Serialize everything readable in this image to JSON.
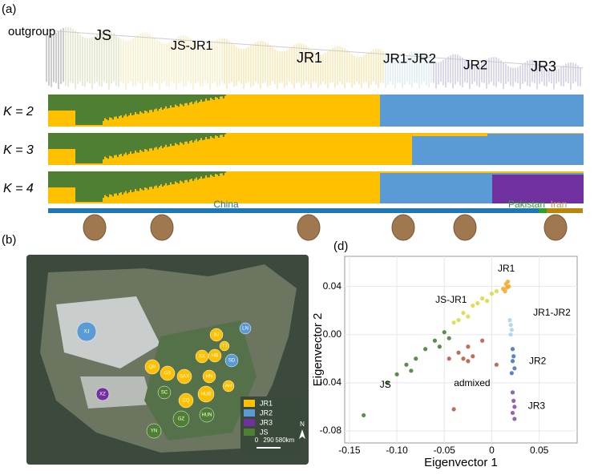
{
  "panel_labels": [
    "(a)",
    "(b)",
    "(d)"
  ],
  "structure": {
    "clades": [
      "outgroup",
      "JS",
      "JS-JR1",
      "JR1",
      "JR1-JR2",
      "JR2",
      "JR3"
    ],
    "k_labels": [
      "K = 2",
      "K = 3",
      "K = 4"
    ],
    "countries": [
      "China",
      "Pakistan",
      "Iran"
    ]
  },
  "map": {
    "sites": [
      "XJ",
      "BJ",
      "TJ",
      "LN",
      "SX",
      "HB",
      "SD",
      "QH",
      "GS",
      "SAX",
      "HN",
      "AH",
      "XZ",
      "SC",
      "CQ",
      "HUB",
      "GZ",
      "HUN",
      "YN"
    ],
    "legend": [
      "JR1",
      "JR2",
      "JR3",
      "JS"
    ],
    "scale": [
      "0",
      "290",
      "580",
      "km"
    ],
    "north": "N"
  },
  "chart_data": {
    "type": "scatter",
    "x_label": "Eigenvector 1",
    "y_label": "Eigenvector 2",
    "xlim": [
      -0.155,
      0.09
    ],
    "ylim": [
      -0.09,
      0.065
    ],
    "grid": true,
    "xticks": [
      -0.15,
      {
        "value": -0.1,
        "label": "-0.10"
      },
      -0.05,
      0,
      0.05
    ],
    "yticks": [
      0.04,
      {
        "value": 0,
        "label": "0.00"
      },
      -0.04,
      -0.08
    ],
    "series": [
      {
        "name": "JS",
        "color": "#3d7a2e",
        "x": [
          -0.135,
          -0.11,
          -0.1,
          -0.09,
          -0.085,
          -0.08,
          -0.07,
          -0.06,
          -0.055,
          -0.05,
          -0.045
        ],
        "values": [
          -0.067,
          -0.04,
          -0.033,
          -0.025,
          -0.03,
          -0.02,
          -0.012,
          -0.005,
          -0.01,
          0.002,
          -0.003
        ]
      },
      {
        "name": "JS-JR1",
        "color": "#d8d83a",
        "x": [
          -0.04,
          -0.035,
          -0.03,
          -0.025,
          -0.02,
          -0.015,
          -0.01,
          -0.005,
          0,
          0.005
        ],
        "values": [
          0.01,
          0.012,
          0.018,
          0.015,
          0.024,
          0.026,
          0.03,
          0.028,
          0.034,
          0.036
        ]
      },
      {
        "name": "JR1",
        "color": "#f5a623",
        "x": [
          0.012,
          0.014,
          0.015,
          0.016,
          0.017,
          0.018
        ],
        "values": [
          0.038,
          0.036,
          0.042,
          0.039,
          0.044,
          0.04
        ]
      },
      {
        "name": "JR1-JR2",
        "color": "#a8d0e8",
        "x": [
          0.019,
          0.02,
          0.021,
          0.02
        ],
        "values": [
          0.012,
          0.008,
          0.004,
          0
        ]
      },
      {
        "name": "JR2",
        "color": "#3d6fb8",
        "x": [
          0.022,
          0.023,
          0.022,
          0.024,
          0.021
        ],
        "values": [
          -0.012,
          -0.018,
          -0.022,
          -0.028,
          -0.032
        ]
      },
      {
        "name": "JR3",
        "color": "#7b4ba8",
        "x": [
          0.022,
          0.023,
          0.024,
          0.022,
          0.024
        ],
        "values": [
          -0.048,
          -0.055,
          -0.06,
          -0.065,
          -0.07
        ]
      },
      {
        "name": "admixed",
        "color": "#b5553a",
        "x": [
          -0.045,
          -0.035,
          -0.03,
          -0.025,
          -0.02,
          -0.025,
          -0.01,
          0.005,
          -0.04
        ],
        "values": [
          -0.02,
          -0.015,
          -0.02,
          -0.022,
          -0.018,
          -0.01,
          -0.005,
          -0.025,
          -0.062
        ]
      }
    ]
  }
}
